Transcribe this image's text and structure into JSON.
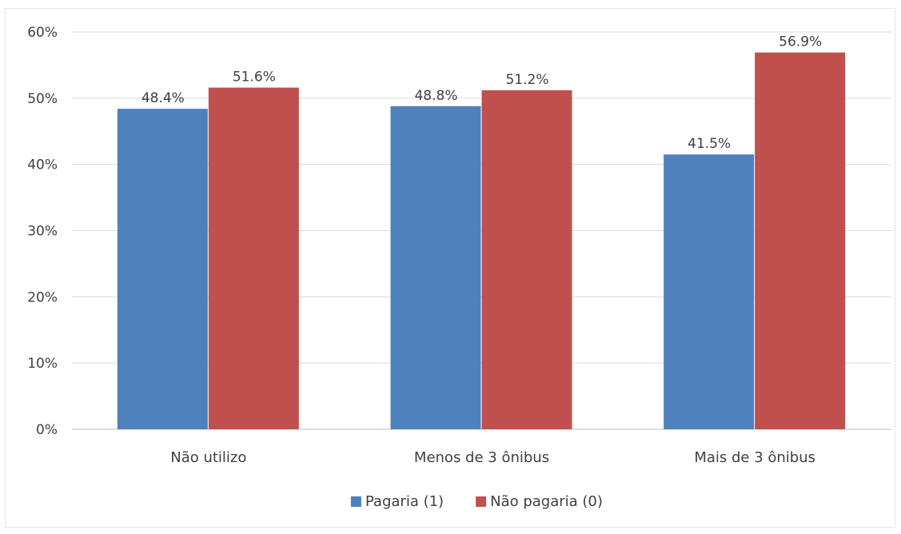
{
  "chart_data": {
    "type": "bar",
    "categories": [
      "Não utilizo",
      "Menos de 3 ônibus",
      "Mais de 3 ônibus"
    ],
    "series": [
      {
        "name": "Pagaria (1)",
        "color": "#4f81bd",
        "values": [
          48.4,
          48.8,
          41.5
        ],
        "labels": [
          "48.4%",
          "48.8%",
          "41.5%"
        ]
      },
      {
        "name": "Não pagaria (0)",
        "color": "#c0504d",
        "values": [
          51.6,
          51.2,
          56.9
        ],
        "labels": [
          "51.6%",
          "51.2%",
          "56.9%"
        ]
      }
    ],
    "ylim": [
      0,
      60
    ],
    "yticks": [
      "0%",
      "10%",
      "20%",
      "30%",
      "40%",
      "50%",
      "60%"
    ],
    "ytick_values": [
      0,
      10,
      20,
      30,
      40,
      50,
      60
    ],
    "grid": true,
    "legend": "bottom-center",
    "title": "",
    "xlabel": "",
    "ylabel": ""
  }
}
